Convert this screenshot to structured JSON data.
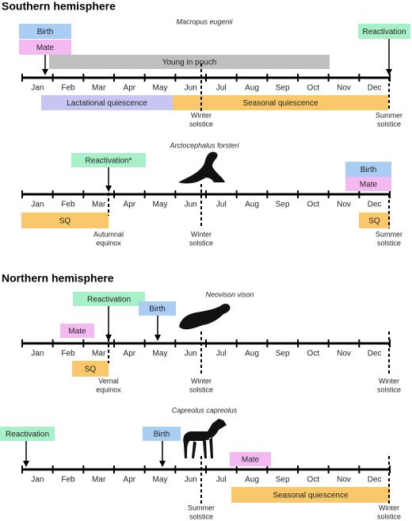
{
  "sections": [
    "Southern hemisphere",
    "Northern hemisphere"
  ],
  "months": [
    "Jan",
    "Feb",
    "Mar",
    "Apr",
    "May",
    "Jun",
    "Jul",
    "Aug",
    "Sep",
    "Oct",
    "Nov",
    "Dec"
  ],
  "panels": [
    {
      "species": "Macropus eugenii",
      "events": [
        "Birth",
        "Mate",
        "Reactivation"
      ],
      "periods": [
        "Young in pouch",
        "Lactational quiescence",
        "Seasonal quiescence"
      ],
      "markers": [
        [
          "Winter",
          "solstice"
        ],
        [
          "Summer",
          "solstice"
        ]
      ]
    },
    {
      "species": "Arctocephalus forsteri",
      "events": [
        "Reactivation*",
        "Birth",
        "Mate"
      ],
      "periods": [
        "SQ",
        "SQ"
      ],
      "markers": [
        [
          "Autumnal",
          "equinox"
        ],
        [
          "Winter",
          "solstice"
        ],
        [
          "Summer",
          "solstice"
        ]
      ]
    },
    {
      "species": "Neovison vison",
      "events": [
        "Reactivation",
        "Birth",
        "Mate"
      ],
      "periods": [
        "SQ"
      ],
      "markers": [
        [
          "Vernal",
          "equinox"
        ],
        [
          "Winter",
          "solstice"
        ],
        [
          "Winter",
          "solstice"
        ]
      ]
    },
    {
      "species": "Capreolus capreolus",
      "events": [
        "Reactivation",
        "Birth",
        "Mate"
      ],
      "periods": [
        "Seasonal quiescence"
      ],
      "markers": [
        [
          "Summer",
          "solstice"
        ],
        [
          "Winter",
          "solstice"
        ]
      ]
    }
  ]
}
